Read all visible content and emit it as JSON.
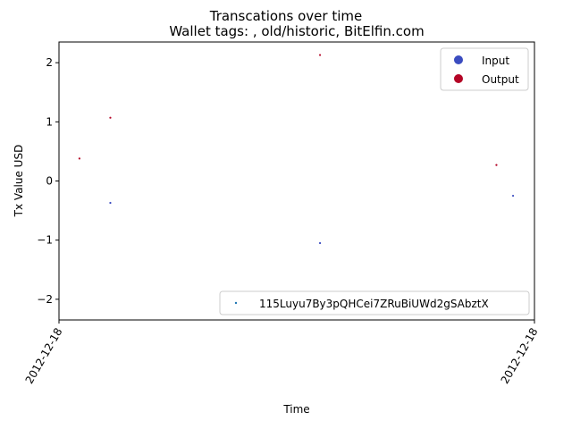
{
  "chart_data": {
    "type": "scatter",
    "title": "Transcations over time",
    "subtitle": "Wallet tags: , old/historic, BitElfin.com",
    "xlabel": "Time",
    "ylabel": "Tx Value USD",
    "x_tick_labels": [
      "2012-12-18",
      "2012-12-18"
    ],
    "x_range": [
      0,
      1
    ],
    "ylim": [
      -2.35,
      2.35
    ],
    "y_ticks": [
      -2,
      -1,
      0,
      1,
      2
    ],
    "y_tick_labels": [
      "−2",
      "−1",
      "0",
      "1",
      "2"
    ],
    "grid": false,
    "series": [
      {
        "name": "Input",
        "color": "#3b4cc0",
        "points": [
          {
            "x": 0.108,
            "y": -0.37
          },
          {
            "x": 0.549,
            "y": -1.05
          },
          {
            "x": 0.955,
            "y": -0.25
          }
        ]
      },
      {
        "name": "Output",
        "color": "#b40426",
        "points": [
          {
            "x": 0.043,
            "y": 0.38
          },
          {
            "x": 0.108,
            "y": 1.07
          },
          {
            "x": 0.549,
            "y": 2.13
          },
          {
            "x": 0.92,
            "y": 0.27
          }
        ]
      }
    ],
    "legend_position": "top-right",
    "secondary_legend": {
      "label": "115Luyu7By3pQHCei7ZRuBiUWd2gSAbztX",
      "color": "#1f77b4",
      "position": "bottom-right"
    }
  }
}
